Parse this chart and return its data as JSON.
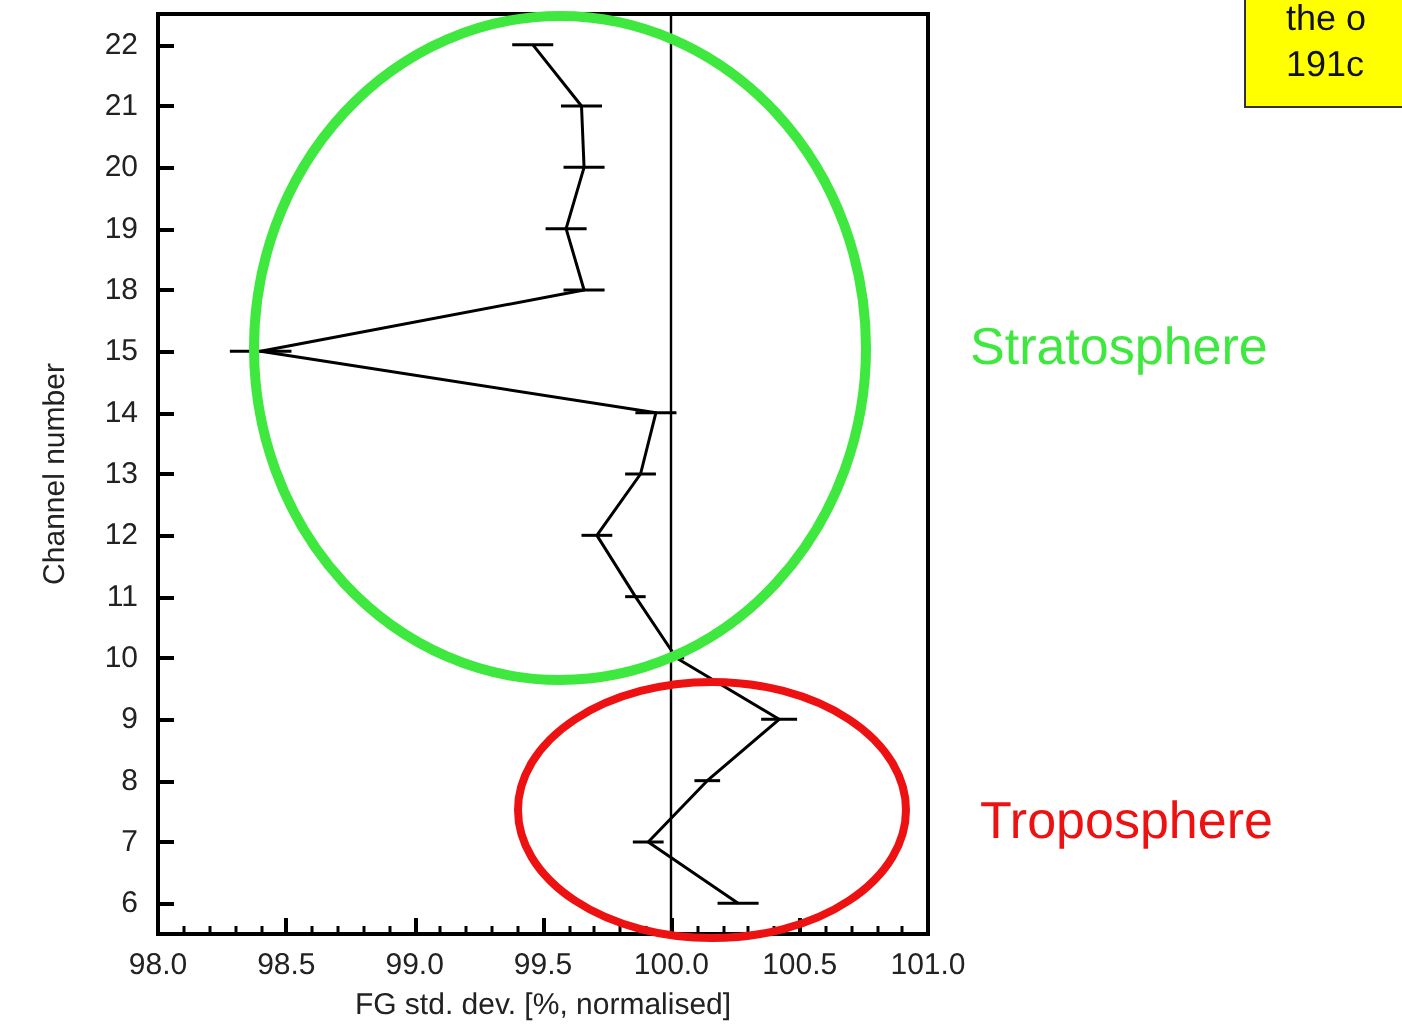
{
  "chart_data": {
    "type": "line",
    "orientation": "horizontal",
    "xlabel": "FG std. dev. [%, normalised]",
    "ylabel": "Channel number",
    "categories": [
      "22",
      "21",
      "20",
      "19",
      "18",
      "15",
      "14",
      "13",
      "12",
      "11",
      "10",
      "9",
      "8",
      "7",
      "6"
    ],
    "series": [
      {
        "color": "#000000",
        "values": [
          99.46,
          99.65,
          99.66,
          99.59,
          99.66,
          98.4,
          99.94,
          99.88,
          99.71,
          99.86,
          100.02,
          100.42,
          100.14,
          99.91,
          100.26
        ],
        "errors": [
          0.08,
          0.08,
          0.08,
          0.08,
          0.08,
          0.12,
          0.08,
          0.06,
          0.06,
          0.04,
          0.03,
          0.07,
          0.05,
          0.06,
          0.08
        ]
      }
    ],
    "xlim": [
      98,
      101
    ],
    "xticks": [
      {
        "value": 98,
        "label": "98.0"
      },
      {
        "value": 98.5,
        "label": "98.5"
      },
      {
        "value": 99,
        "label": "99.0"
      },
      {
        "value": 99.5,
        "label": "99.5"
      },
      {
        "value": 100,
        "label": "100.0"
      },
      {
        "value": 100.5,
        "label": "100.5"
      },
      {
        "value": 101,
        "label": "101.0"
      }
    ],
    "ref_lines": [
      {
        "axis": "x",
        "value": 100,
        "color": "#000000"
      }
    ],
    "annotations": [
      "Stratosphere",
      "Troposphere",
      "the o\n191c"
    ],
    "marker": "none",
    "line_style": "solid",
    "grid": false
  }
}
